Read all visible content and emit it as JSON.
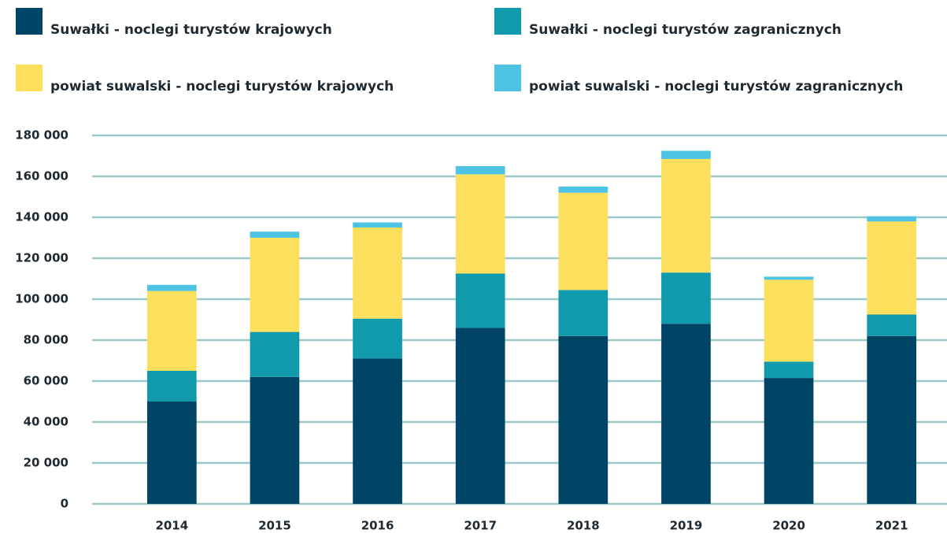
{
  "chart_data": {
    "type": "stacked_bar",
    "categories": [
      "2014",
      "2015",
      "2016",
      "2017",
      "2018",
      "2019",
      "2020",
      "2021"
    ],
    "series": [
      {
        "name": "Suwałki - noclegi turystów krajowych",
        "color": "#004466",
        "values": [
          50000,
          62000,
          71000,
          86000,
          82000,
          88000,
          61500,
          82000
        ]
      },
      {
        "name": "Suwałki - noclegi turystów zagranicznych",
        "color": "#109aab",
        "values": [
          15000,
          22000,
          19500,
          26500,
          22500,
          25000,
          8000,
          10500
        ]
      },
      {
        "name": "powiat suwalski - noclegi turystów krajowych",
        "color": "#fddf5e",
        "values": [
          39000,
          46000,
          44500,
          48500,
          47500,
          55500,
          40000,
          45500
        ]
      },
      {
        "name": "powiat suwalski - noclegi turystów zagranicznych",
        "color": "#4fc3e4",
        "values": [
          3000,
          3000,
          2500,
          4000,
          3000,
          4000,
          1500,
          2500
        ]
      }
    ],
    "ylim": [
      0,
      180000
    ],
    "yticks": [
      0,
      {
        "value": 20000,
        "label": "20 000"
      },
      {
        "value": 40000,
        "label": "40 000"
      },
      {
        "value": 60000,
        "label": "60 000"
      },
      {
        "value": 80000,
        "label": "80 000"
      },
      {
        "value": 100000,
        "label": "100 000"
      },
      {
        "value": 120000,
        "label": "120 000"
      },
      {
        "value": 140000,
        "label": "140 000"
      },
      {
        "value": 160000,
        "label": "160 000"
      },
      {
        "value": 180000,
        "label": "180 000"
      }
    ],
    "grid": true
  }
}
